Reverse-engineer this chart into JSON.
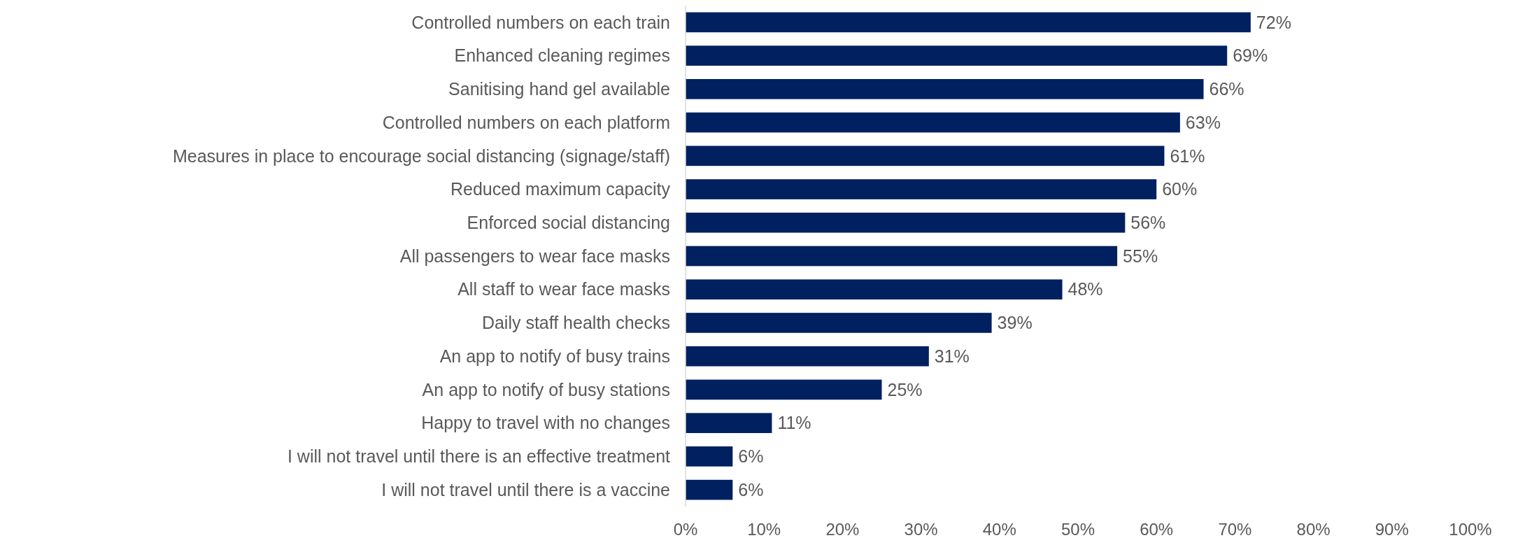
{
  "chart_data": {
    "type": "bar",
    "orientation": "horizontal",
    "categories": [
      "Controlled numbers on each train",
      "Enhanced cleaning regimes",
      "Sanitising hand gel available",
      "Controlled numbers on each platform",
      "Measures in place to encourage social distancing (signage/staff)",
      "Reduced maximum capacity",
      "Enforced social distancing",
      "All passengers to wear face masks",
      "All staff to wear face masks",
      "Daily staff health checks",
      "An app to notify of busy trains",
      "An app to notify of busy stations",
      "Happy to travel with no changes",
      "I will not travel until there is an effective treatment",
      "I will not travel until there is a vaccine"
    ],
    "values": [
      72,
      69,
      66,
      63,
      61,
      60,
      56,
      55,
      48,
      39,
      31,
      25,
      11,
      6,
      6
    ],
    "value_labels": [
      "72%",
      "69%",
      "66%",
      "63%",
      "61%",
      "60%",
      "56%",
      "55%",
      "48%",
      "39%",
      "31%",
      "25%",
      "11%",
      "6%",
      "6%"
    ],
    "color": "#002060",
    "xlim": [
      0,
      100
    ],
    "xticks": [
      {
        "value": 0,
        "label": "0%"
      },
      {
        "value": 10,
        "label": "10%"
      },
      {
        "value": 20,
        "label": "20%"
      },
      {
        "value": 30,
        "label": "30%"
      },
      {
        "value": 40,
        "label": "40%"
      },
      {
        "value": 50,
        "label": "50%"
      },
      {
        "value": 60,
        "label": "60%"
      },
      {
        "value": 70,
        "label": "70%"
      },
      {
        "value": 80,
        "label": "80%"
      },
      {
        "value": 90,
        "label": "90%"
      },
      {
        "value": 100,
        "label": "100%"
      }
    ],
    "grid": false
  }
}
